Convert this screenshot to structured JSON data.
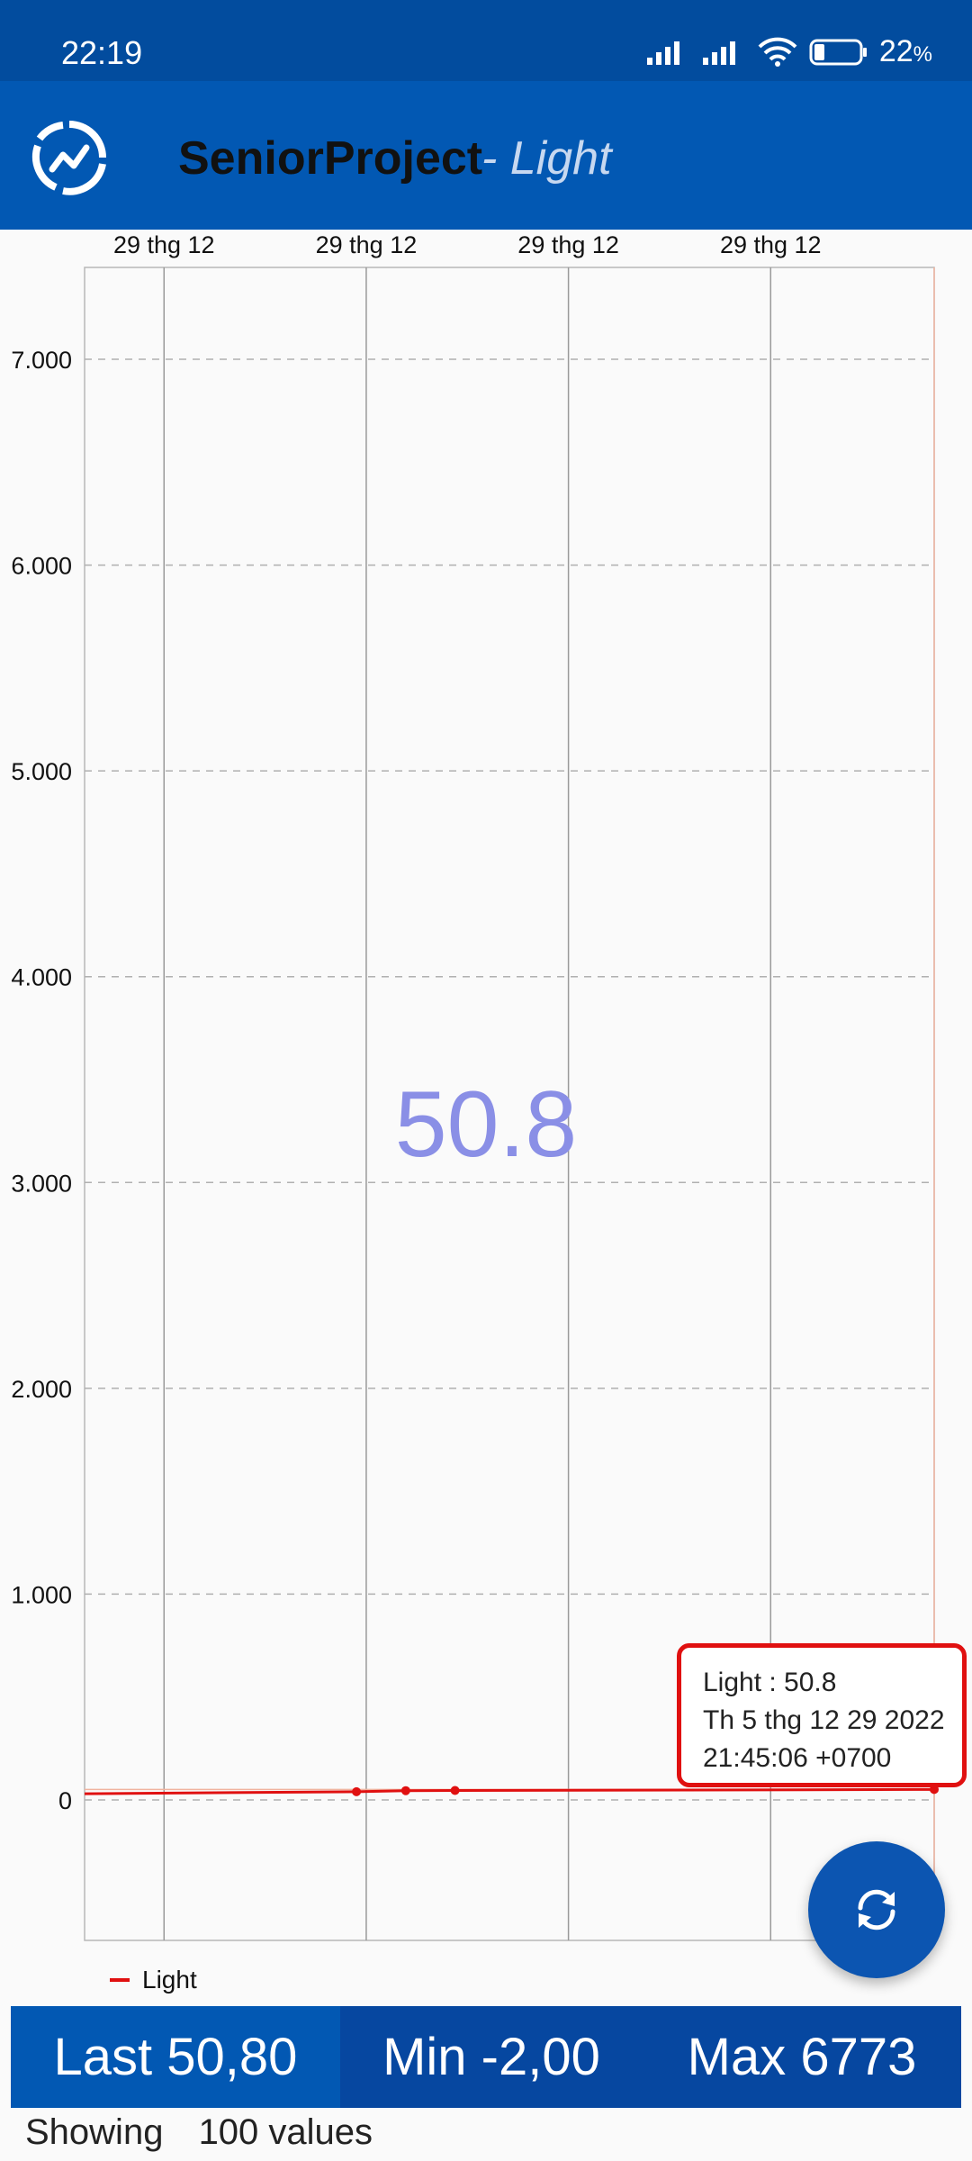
{
  "status_bar": {
    "time": "22:19",
    "battery_percent": "22",
    "battery_unit": "%",
    "icons": [
      "signal-icon",
      "signal-icon",
      "wifi-icon",
      "battery-icon"
    ]
  },
  "app_bar": {
    "title": "SeniorProject",
    "subtitle": "- Light",
    "logo_icon": "chart-logo-icon",
    "background": "#0258b3"
  },
  "chart_data": {
    "type": "line",
    "x_tick_labels": [
      "29 thg 12",
      "29 thg 12",
      "29 thg 12",
      "29 thg 12"
    ],
    "y_tick_labels": [
      "7.000",
      "6.000",
      "5.000",
      "4.000",
      "3.000",
      "2.000",
      "1.000",
      "0"
    ],
    "ylim": [
      -700,
      7450
    ],
    "grid": true,
    "legend_placement": "bottom-left",
    "series": [
      {
        "name": "Light",
        "color": "#e01010",
        "points": [
          {
            "x": 0,
            "y": 30
          },
          {
            "x": 0.32,
            "y": 40
          },
          {
            "x": 0.378,
            "y": 45
          },
          {
            "x": 0.436,
            "y": 46
          },
          {
            "x": 1.0,
            "y": 50.8
          }
        ]
      }
    ],
    "highlighted_value": "50.8",
    "tooltip": {
      "line1": "Light : 50.8",
      "line2": "Th 5 thg 12 29 2022",
      "line3": "21:45:06 +0700"
    }
  },
  "legend": {
    "label": "Light"
  },
  "fab": {
    "icon": "refresh-icon"
  },
  "stats": {
    "last": "Last 50,80",
    "min": "Min -2,00",
    "max": "Max 6773"
  },
  "footer": {
    "label": "Showing",
    "count": "100 values"
  }
}
